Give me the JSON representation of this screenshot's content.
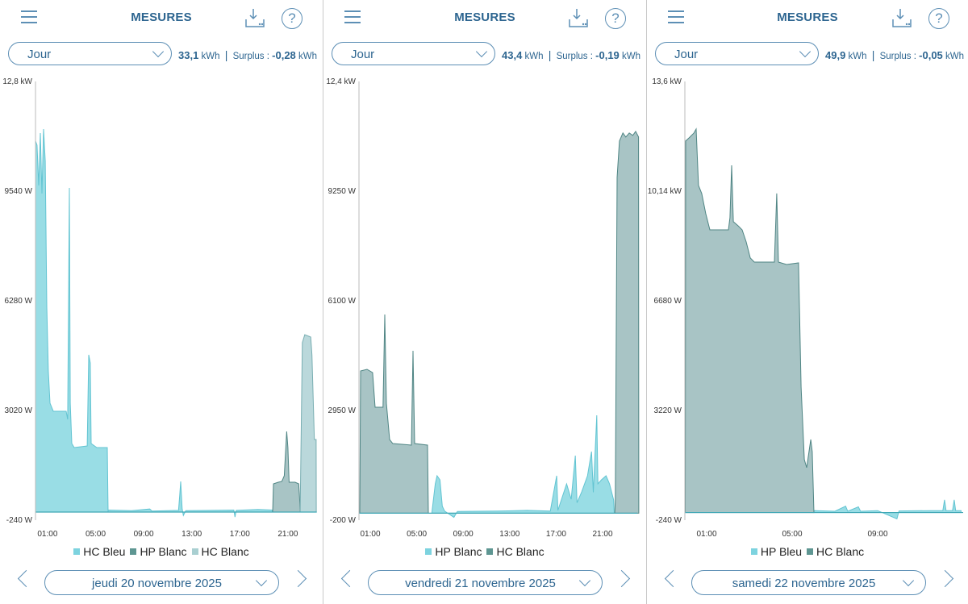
{
  "app": {
    "title": "MESURES",
    "menu_icon": "hamburger-icon",
    "download_icon": "download-icon",
    "help_icon": "help-icon",
    "help_glyph": "?"
  },
  "colors": {
    "series": [
      "#94dbe4",
      "#a3c1c2",
      "#b6d6d9"
    ],
    "strokes": [
      "#62c4d2",
      "#4f8584",
      "#79aeb2"
    ],
    "legend": [
      "#7dd3df",
      "#5e9692",
      "#a9cfd1"
    ],
    "accent": "#2d6590",
    "baseline": "#3fa7b5"
  },
  "panels": [
    {
      "period": "Jour",
      "consumption": "33,1",
      "consumption_unit": "kWh",
      "separator": "|",
      "surplus_label": "Surplus :",
      "surplus": "-0,28",
      "surplus_unit": "kWh",
      "date": "jeudi 20 novembre 2025",
      "legend": [
        "HC Bleu",
        "HP Blanc",
        "HC Blanc"
      ],
      "chart_data": {
        "type": "area",
        "y_ticks": [
          "12,8 kW",
          "9540 W",
          "6280 W",
          "3020 W",
          "-240 W"
        ],
        "ylim": [
          -240,
          12800
        ],
        "x_ticks": [
          "01:00",
          "05:00",
          "09:00",
          "13:00",
          "17:00",
          "21:00"
        ],
        "x_tick_hours": [
          1,
          5,
          9,
          13,
          17,
          21
        ],
        "xlim_hours": [
          0,
          23.4
        ],
        "y_unit": "W",
        "series": [
          {
            "name": "HC Bleu",
            "segments": [
              [
                [
                  0,
                  11030
                ],
                [
                  0.13,
                  10906
                ],
                [
                  0.27,
                  9708
                ],
                [
                  0.4,
                  11266
                ],
                [
                  0.54,
                  9468
                ],
                [
                  0.67,
                  11386
                ],
                [
                  0.81,
                  10427
                ],
                [
                  0.94,
                  6112
                ],
                [
                  1.07,
                  4195
                ],
                [
                  1.21,
                  3236
                ],
                [
                  1.48,
                  2996
                ],
                [
                  2.08,
                  2996
                ],
                [
                  2.55,
                  2996
                ],
                [
                  2.68,
                  2757
                ],
                [
                  2.82,
                  9636
                ],
                [
                  2.89,
                  3236
                ],
                [
                  3.02,
                  2037
                ],
                [
                  3.22,
                  1918
                ],
                [
                  4.3,
                  1966
                ],
                [
                  4.43,
                  4674
                ],
                [
                  4.56,
                  4434
                ],
                [
                  4.63,
                  2037
                ],
                [
                  5.1,
                  1918
                ],
                [
                  5.97,
                  1918
                ],
                [
                  6.04,
                  0
                ]
              ],
              [
                [
                  6.04,
                  60
                ],
                [
                  8,
                  40
                ],
                [
                  9.5,
                  90
                ],
                [
                  9.7,
                  30
                ],
                [
                  11.9,
                  50
                ],
                [
                  12.0,
                  500
                ],
                [
                  12.08,
                  911
                ],
                [
                  12.2,
                  100
                ],
                [
                  12.3,
                  -100
                ],
                [
                  12.5,
                  40
                ],
                [
                  16.5,
                  60
                ],
                [
                  16.6,
                  -150
                ],
                [
                  16.7,
                  50
                ],
                [
                  18.5,
                  80
                ],
                [
                  19.7,
                  60
                ]
              ]
            ]
          },
          {
            "name": "HP Blanc",
            "segments": [
              [
                [
                  19.73,
                  0
                ],
                [
                  19.8,
                  839
                ],
                [
                  20.2,
                  887
                ],
                [
                  20.5,
                  911
                ],
                [
                  20.7,
                  1079
                ],
                [
                  20.9,
                  2397
                ],
                [
                  21.0,
                  1918
                ],
                [
                  21.1,
                  887
                ],
                [
                  21.6,
                  887
                ],
                [
                  21.9,
                  839
                ],
                [
                  22.0,
                  240
                ],
                [
                  22.02,
                  0
                ]
              ]
            ]
          },
          {
            "name": "HC Blanc",
            "segments": [
              [
                [
                  22.02,
                  0
                ],
                [
                  22.2,
                  5034
                ],
                [
                  22.4,
                  5273
                ],
                [
                  22.9,
                  5201
                ],
                [
                  23.0,
                  4674
                ],
                [
                  23.2,
                  2157
                ],
                [
                  23.35,
                  2157
                ],
                [
                  23.36,
                  0
                ]
              ]
            ]
          }
        ]
      }
    },
    {
      "period": "Jour",
      "consumption": "43,4",
      "consumption_unit": "kWh",
      "separator": "|",
      "surplus_label": "Surplus :",
      "surplus": "-0,19",
      "surplus_unit": "kWh",
      "date": "vendredi 21 novembre 2025",
      "legend": [
        "HP Blanc",
        "HC Blanc"
      ],
      "chart_data": {
        "type": "area",
        "y_ticks": [
          "12,4 kW",
          "9250 W",
          "6100 W",
          "2950 W",
          "-200 W"
        ],
        "ylim": [
          -200,
          12400
        ],
        "x_ticks": [
          "01:00",
          "05:00",
          "09:00",
          "13:00",
          "17:00",
          "21:00"
        ],
        "x_tick_hours": [
          1,
          5,
          9,
          13,
          17,
          21
        ],
        "xlim_hours": [
          0,
          24
        ],
        "y_unit": "W",
        "series": [
          {
            "name": "HP Blanc",
            "segments": [
              [
                [
                  6.3,
                  0
                ],
                [
                  6.6,
                  843
                ],
                [
                  6.75,
                  1075
                ],
                [
                  7.0,
                  959
                ],
                [
                  7.2,
                  200
                ],
                [
                  7.4,
                  60
                ],
                [
                  8.2,
                  -120
                ],
                [
                  8.5,
                  50
                ],
                [
                  12,
                  60
                ],
                [
                  14.5,
                  80
                ],
                [
                  16.5,
                  60
                ],
                [
                  17.05,
                  1075
                ],
                [
                  17.15,
                  80
                ],
                [
                  17.9,
                  843
                ],
                [
                  18.3,
                  400
                ],
                [
                  18.65,
                  1654
                ],
                [
                  18.8,
                  300
                ],
                [
                  19.2,
                  612
                ],
                [
                  19.7,
                  1075
                ],
                [
                  20.05,
                  1769
                ],
                [
                  20.2,
                  600
                ],
                [
                  20.5,
                  2812
                ],
                [
                  20.6,
                  843
                ],
                [
                  20.9,
                  959
                ],
                [
                  21.3,
                  1075
                ],
                [
                  21.6,
                  843
                ],
                [
                  21.95,
                  380
                ],
                [
                  22.0,
                  0
                ]
              ]
            ]
          },
          {
            "name": "HC Blanc",
            "segments": [
              [
                [
                  0.1,
                  0
                ],
                [
                  0.17,
                  4085
                ],
                [
                  0.72,
                  4132
                ],
                [
                  1.2,
                  4039
                ],
                [
                  1.42,
                  3043
                ],
                [
                  2.1,
                  3043
                ],
                [
                  2.25,
                  5707
                ],
                [
                  2.39,
                  3159
                ],
                [
                  2.67,
                  2117
                ],
                [
                  2.94,
                  2001
                ],
                [
                  4.54,
                  1954
                ],
                [
                  4.68,
                  4664
                ],
                [
                  4.82,
                  2001
                ],
                [
                  5.93,
                  1954
                ],
                [
                  6.0,
                  0
                ]
              ],
              [
                [
                  22.05,
                  0
                ],
                [
                  22.1,
                  380
                ],
                [
                  22.25,
                  9644
                ],
                [
                  22.45,
                  10688
                ],
                [
                  22.75,
                  10920
                ],
                [
                  23.0,
                  10804
                ],
                [
                  23.3,
                  10920
                ],
                [
                  23.6,
                  10850
                ],
                [
                  23.85,
                  10966
                ],
                [
                  24.1,
                  10804
                ],
                [
                  24.12,
                  0
                ]
              ]
            ]
          }
        ]
      }
    },
    {
      "period": "Jour",
      "consumption": "49,9",
      "consumption_unit": "kWh",
      "separator": "|",
      "surplus_label": "Surplus :",
      "surplus": "-0,05",
      "surplus_unit": "kWh",
      "date": "samedi 22 novembre 2025",
      "legend": [
        "HP Bleu",
        "HC Blanc"
      ],
      "chart_data": {
        "type": "area",
        "y_ticks": [
          "13,6 kW",
          "10,14 kW",
          "6680 W",
          "3220 W",
          "-240 W"
        ],
        "ylim": [
          -240,
          13600
        ],
        "x_ticks": [
          "01:00",
          "05:00",
          "09:00"
        ],
        "x_tick_hours": [
          1,
          5,
          9
        ],
        "xlim_hours": [
          0,
          13
        ],
        "y_unit": "W",
        "series": [
          {
            "name": "HP Bleu",
            "segments": [
              [
                [
                  6.02,
                  60
                ],
                [
                  7.0,
                  40
                ],
                [
                  7.5,
                  200
                ],
                [
                  7.6,
                  40
                ],
                [
                  8.1,
                  180
                ],
                [
                  8.2,
                  40
                ],
                [
                  9.0,
                  60
                ],
                [
                  9.9,
                  -200
                ],
                [
                  10.0,
                  50
                ],
                [
                  11.5,
                  60
                ],
                [
                  12.05,
                  60
                ],
                [
                  12.13,
                  400
                ],
                [
                  12.2,
                  60
                ],
                [
                  12.5,
                  60
                ],
                [
                  12.58,
                  400
                ],
                [
                  12.65,
                  60
                ],
                [
                  12.9,
                  60
                ]
              ]
            ]
          },
          {
            "name": "HC Blanc",
            "segments": [
              [
                [
                  0,
                  0
                ],
                [
                  0.02,
                  11720
                ],
                [
                  0.21,
                  11843
                ],
                [
                  0.4,
                  11970
                ],
                [
                  0.51,
                  12098
                ],
                [
                  0.62,
                  10320
                ],
                [
                  0.77,
                  10065
                ],
                [
                  0.96,
                  9430
                ],
                [
                  1.15,
                  8920
                ],
                [
                  1.34,
                  8920
                ],
                [
                  1.72,
                  8920
                ],
                [
                  2.02,
                  8920
                ],
                [
                  2.09,
                  9300
                ],
                [
                  2.17,
                  10955
                ],
                [
                  2.25,
                  9175
                ],
                [
                  2.47,
                  9046
                ],
                [
                  2.66,
                  8920
                ],
                [
                  2.85,
                  8540
                ],
                [
                  3.04,
                  8030
                ],
                [
                  3.23,
                  7900
                ],
                [
                  3.79,
                  7900
                ],
                [
                  4.17,
                  7900
                ],
                [
                  4.28,
                  10065
                ],
                [
                  4.36,
                  7900
                ],
                [
                  4.74,
                  7825
                ],
                [
                  5.3,
                  7876
                ],
                [
                  5.42,
                  3960
                ],
                [
                  5.57,
                  1670
                ],
                [
                  5.68,
                  1415
                ],
                [
                  5.87,
                  2305
                ],
                [
                  5.94,
                  1923
                ],
                [
                  6.02,
                  0
                ]
              ]
            ]
          }
        ]
      }
    }
  ]
}
